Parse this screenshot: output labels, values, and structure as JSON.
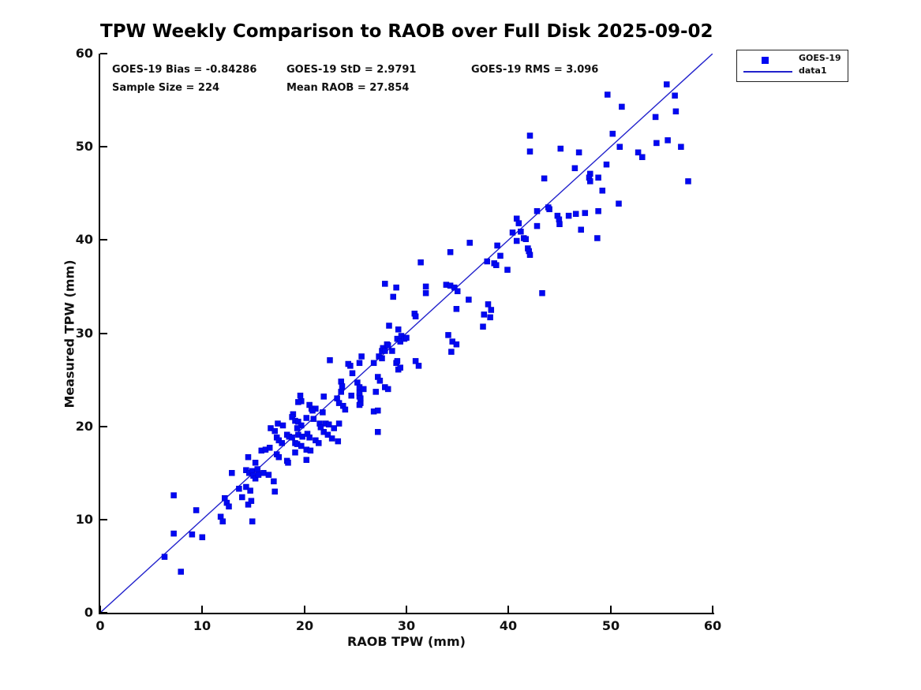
{
  "title": "TPW Weekly Comparison to RAOB over Full Disk 2025-09-02",
  "stats": {
    "bias": "GOES-19 Bias = -0.84286",
    "std": "GOES-19 StD = 2.9791",
    "rms": "GOES-19 RMS = 3.096",
    "sample_size": "Sample Size = 224",
    "mean_raob": "Mean RAOB = 27.854"
  },
  "legend": {
    "items": [
      {
        "label": "GOES-19",
        "symbol": "square-marker"
      },
      {
        "label": "data1",
        "symbol": "line"
      }
    ]
  },
  "colors": {
    "marker": "#0008f2",
    "marker_edge": "#0000c8",
    "line": "#2222cc",
    "axis": "#000000",
    "text": "#111111"
  },
  "chart_data": {
    "type": "scatter",
    "title": "TPW Weekly Comparison to RAOB over Full Disk 2025-09-02",
    "xlabel": "RAOB TPW (mm)",
    "ylabel": "Measured TPW (mm)",
    "xlim": [
      0,
      60
    ],
    "ylim": [
      0,
      60
    ],
    "xticks": [
      0,
      10,
      20,
      30,
      40,
      50,
      60
    ],
    "yticks": [
      0,
      10,
      20,
      30,
      40,
      50,
      60
    ],
    "grid": false,
    "legend_position": "outside-top-right",
    "series": [
      {
        "name": "GOES-19",
        "type": "scatter",
        "marker": "filled-square",
        "points": [
          [
            6.3,
            6.0
          ],
          [
            7.9,
            4.4
          ],
          [
            7.2,
            8.5
          ],
          [
            9.0,
            8.4
          ],
          [
            10.0,
            8.1
          ],
          [
            9.4,
            11.0
          ],
          [
            7.2,
            12.6
          ],
          [
            11.8,
            10.3
          ],
          [
            12.0,
            9.8
          ],
          [
            12.2,
            12.3
          ],
          [
            12.4,
            11.8
          ],
          [
            12.6,
            11.4
          ],
          [
            12.9,
            15.0
          ],
          [
            13.6,
            13.3
          ],
          [
            13.9,
            12.4
          ],
          [
            14.3,
            13.5
          ],
          [
            14.7,
            13.1
          ],
          [
            14.5,
            11.6
          ],
          [
            14.9,
            9.8
          ],
          [
            14.8,
            12.0
          ],
          [
            14.3,
            15.3
          ],
          [
            14.6,
            15.0
          ],
          [
            14.9,
            15.2
          ],
          [
            15.0,
            14.7
          ],
          [
            15.2,
            14.4
          ],
          [
            15.5,
            14.8
          ],
          [
            15.4,
            15.4
          ],
          [
            14.5,
            16.7
          ],
          [
            15.2,
            16.1
          ],
          [
            16.0,
            15.0
          ],
          [
            16.5,
            14.8
          ],
          [
            17.0,
            14.1
          ],
          [
            17.1,
            13.0
          ],
          [
            15.8,
            17.4
          ],
          [
            16.2,
            17.5
          ],
          [
            16.6,
            17.7
          ],
          [
            17.3,
            17.0
          ],
          [
            17.5,
            16.7
          ],
          [
            18.3,
            16.3
          ],
          [
            18.4,
            16.1
          ],
          [
            17.3,
            18.8
          ],
          [
            17.5,
            18.5
          ],
          [
            17.8,
            18.2
          ],
          [
            19.1,
            18.2
          ],
          [
            19.3,
            18.1
          ],
          [
            19.7,
            17.9
          ],
          [
            20.2,
            17.5
          ],
          [
            20.6,
            17.4
          ],
          [
            19.1,
            17.2
          ],
          [
            20.2,
            16.4
          ],
          [
            18.3,
            19.1
          ],
          [
            18.5,
            18.9
          ],
          [
            18.8,
            18.8
          ],
          [
            19.4,
            19.1
          ],
          [
            19.8,
            18.9
          ],
          [
            20.3,
            19.2
          ],
          [
            20.5,
            18.8
          ],
          [
            21.9,
            19.4
          ],
          [
            22.3,
            19.1
          ],
          [
            22.7,
            18.7
          ],
          [
            23.3,
            18.4
          ],
          [
            21.1,
            18.5
          ],
          [
            21.4,
            18.2
          ],
          [
            16.7,
            19.8
          ],
          [
            17.1,
            19.5
          ],
          [
            17.4,
            20.3
          ],
          [
            17.9,
            20.1
          ],
          [
            18.9,
            21.3
          ],
          [
            18.8,
            21.0
          ],
          [
            19.1,
            20.6
          ],
          [
            19.4,
            20.5
          ],
          [
            19.7,
            20.1
          ],
          [
            19.3,
            19.8
          ],
          [
            20.2,
            20.9
          ],
          [
            20.9,
            20.8
          ],
          [
            21.5,
            20.3
          ],
          [
            21.6,
            19.9
          ],
          [
            22.1,
            20.3
          ],
          [
            22.4,
            20.2
          ],
          [
            22.9,
            19.8
          ],
          [
            21.8,
            21.5
          ],
          [
            19.6,
            23.3
          ],
          [
            19.7,
            22.7
          ],
          [
            19.4,
            22.6
          ],
          [
            20.5,
            22.3
          ],
          [
            20.7,
            21.9
          ],
          [
            21.1,
            21.9
          ],
          [
            20.8,
            21.7
          ],
          [
            21.9,
            23.2
          ],
          [
            23.2,
            23.0
          ],
          [
            23.4,
            22.5
          ],
          [
            23.8,
            22.2
          ],
          [
            24.0,
            21.8
          ],
          [
            26.8,
            21.6
          ],
          [
            25.4,
            23.2
          ],
          [
            25.5,
            22.5
          ],
          [
            27.0,
            23.7
          ],
          [
            27.2,
            21.7
          ],
          [
            23.6,
            24.8
          ],
          [
            23.7,
            24.3
          ],
          [
            23.6,
            23.7
          ],
          [
            25.2,
            24.7
          ],
          [
            25.4,
            24.2
          ],
          [
            25.4,
            23.6
          ],
          [
            25.5,
            23.0
          ],
          [
            25.4,
            22.3
          ],
          [
            25.8,
            24.0
          ],
          [
            24.6,
            23.3
          ],
          [
            27.2,
            25.3
          ],
          [
            27.4,
            24.9
          ],
          [
            27.9,
            24.2
          ],
          [
            28.2,
            24.0
          ],
          [
            29.0,
            26.8
          ],
          [
            29.2,
            26.1
          ],
          [
            27.2,
            19.4
          ],
          [
            23.4,
            20.3
          ],
          [
            22.5,
            27.1
          ],
          [
            24.5,
            26.5
          ],
          [
            25.6,
            27.5
          ],
          [
            25.4,
            26.8
          ],
          [
            24.7,
            25.7
          ],
          [
            24.3,
            26.7
          ],
          [
            26.8,
            26.8
          ],
          [
            27.6,
            28.1
          ],
          [
            27.7,
            28.4
          ],
          [
            27.9,
            28.1
          ],
          [
            28.1,
            28.8
          ],
          [
            28.2,
            28.7
          ],
          [
            28.6,
            28.1
          ],
          [
            27.3,
            27.5
          ],
          [
            27.6,
            27.3
          ],
          [
            29.1,
            29.4
          ],
          [
            29.4,
            29.1
          ],
          [
            29.5,
            29.7
          ],
          [
            29.8,
            29.4
          ],
          [
            30.0,
            29.5
          ],
          [
            29.1,
            27.0
          ],
          [
            29.4,
            26.3
          ],
          [
            30.9,
            27.0
          ],
          [
            31.2,
            26.5
          ],
          [
            28.3,
            30.8
          ],
          [
            29.2,
            30.4
          ],
          [
            30.8,
            32.1
          ],
          [
            30.9,
            31.8
          ],
          [
            31.9,
            35.0
          ],
          [
            31.9,
            34.3
          ],
          [
            31.4,
            37.6
          ],
          [
            27.9,
            35.3
          ],
          [
            28.7,
            33.9
          ],
          [
            29.0,
            34.9
          ],
          [
            33.9,
            35.2
          ],
          [
            34.3,
            35.1
          ],
          [
            34.7,
            34.9
          ],
          [
            35.0,
            34.5
          ],
          [
            34.9,
            32.6
          ],
          [
            36.1,
            33.6
          ],
          [
            34.1,
            29.8
          ],
          [
            34.5,
            29.1
          ],
          [
            34.9,
            28.8
          ],
          [
            34.4,
            28.0
          ],
          [
            37.5,
            30.7
          ],
          [
            37.6,
            32.0
          ],
          [
            38.2,
            31.7
          ],
          [
            38.0,
            33.1
          ],
          [
            38.3,
            32.5
          ],
          [
            36.2,
            39.7
          ],
          [
            37.9,
            37.7
          ],
          [
            38.6,
            37.5
          ],
          [
            38.8,
            37.3
          ],
          [
            34.3,
            38.7
          ],
          [
            43.3,
            34.3
          ],
          [
            39.9,
            36.8
          ],
          [
            38.9,
            39.4
          ],
          [
            39.2,
            38.3
          ],
          [
            40.4,
            40.8
          ],
          [
            40.8,
            42.3
          ],
          [
            41.0,
            41.8
          ],
          [
            41.2,
            40.9
          ],
          [
            40.8,
            39.9
          ],
          [
            41.5,
            40.2
          ],
          [
            41.7,
            40.1
          ],
          [
            41.9,
            39.1
          ],
          [
            42.0,
            38.8
          ],
          [
            42.1,
            38.4
          ],
          [
            42.8,
            43.1
          ],
          [
            42.8,
            41.5
          ],
          [
            42.1,
            51.2
          ],
          [
            42.1,
            49.5
          ],
          [
            43.5,
            46.6
          ],
          [
            44.0,
            43.3
          ],
          [
            43.9,
            43.5
          ],
          [
            44.8,
            42.6
          ],
          [
            44.95,
            42.2
          ],
          [
            45.0,
            41.7
          ],
          [
            45.9,
            42.6
          ],
          [
            46.6,
            42.8
          ],
          [
            47.5,
            42.9
          ],
          [
            48.8,
            43.1
          ],
          [
            47.1,
            41.1
          ],
          [
            48.7,
            40.2
          ],
          [
            45.1,
            49.8
          ],
          [
            46.9,
            49.4
          ],
          [
            46.5,
            47.7
          ],
          [
            48.0,
            47.1
          ],
          [
            47.9,
            46.7
          ],
          [
            48.0,
            46.3
          ],
          [
            48.8,
            46.7
          ],
          [
            49.6,
            48.1
          ],
          [
            49.2,
            45.3
          ],
          [
            50.8,
            43.9
          ],
          [
            52.7,
            49.4
          ],
          [
            53.1,
            48.9
          ],
          [
            54.5,
            50.4
          ],
          [
            55.6,
            50.7
          ],
          [
            56.9,
            50.0
          ],
          [
            57.6,
            46.3
          ],
          [
            49.7,
            55.6
          ],
          [
            51.1,
            54.3
          ],
          [
            54.4,
            53.2
          ],
          [
            56.4,
            53.8
          ],
          [
            55.5,
            56.7
          ],
          [
            56.3,
            55.5
          ],
          [
            50.9,
            50.0
          ],
          [
            50.2,
            51.4
          ]
        ]
      },
      {
        "name": "data1",
        "type": "line",
        "points": [
          [
            0,
            0
          ],
          [
            60,
            60
          ]
        ]
      }
    ]
  }
}
